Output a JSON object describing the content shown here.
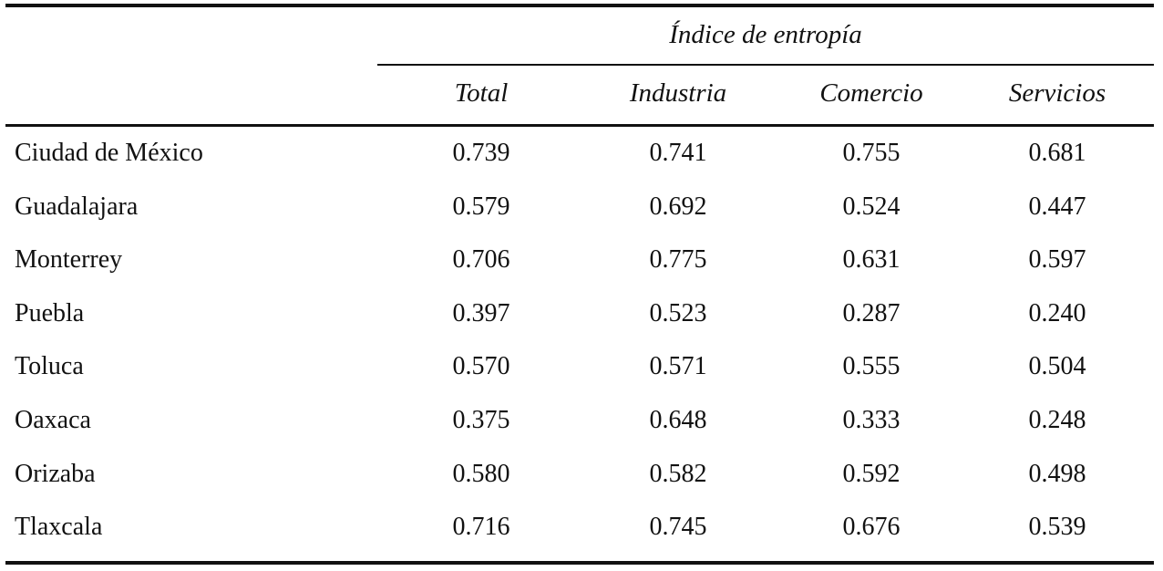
{
  "table": {
    "group_header": "Índice de entropía",
    "columns": [
      "Total",
      "Industria",
      "Comercio",
      "Servicios"
    ],
    "rows": [
      {
        "name": "Ciudad de México",
        "values": [
          "0.739",
          "0.741",
          "0.755",
          "0.681"
        ]
      },
      {
        "name": "Guadalajara",
        "values": [
          "0.579",
          "0.692",
          "0.524",
          "0.447"
        ]
      },
      {
        "name": "Monterrey",
        "values": [
          "0.706",
          "0.775",
          "0.631",
          "0.597"
        ]
      },
      {
        "name": "Puebla",
        "values": [
          "0.397",
          "0.523",
          "0.287",
          "0.240"
        ]
      },
      {
        "name": "Toluca",
        "values": [
          "0.570",
          "0.571",
          "0.555",
          "0.504"
        ]
      },
      {
        "name": "Oaxaca",
        "values": [
          "0.375",
          "0.648",
          "0.333",
          "0.248"
        ]
      },
      {
        "name": "Orizaba",
        "values": [
          "0.580",
          "0.582",
          "0.592",
          "0.498"
        ]
      },
      {
        "name": "Tlaxcala",
        "values": [
          "0.716",
          "0.745",
          "0.676",
          "0.539"
        ]
      }
    ]
  }
}
